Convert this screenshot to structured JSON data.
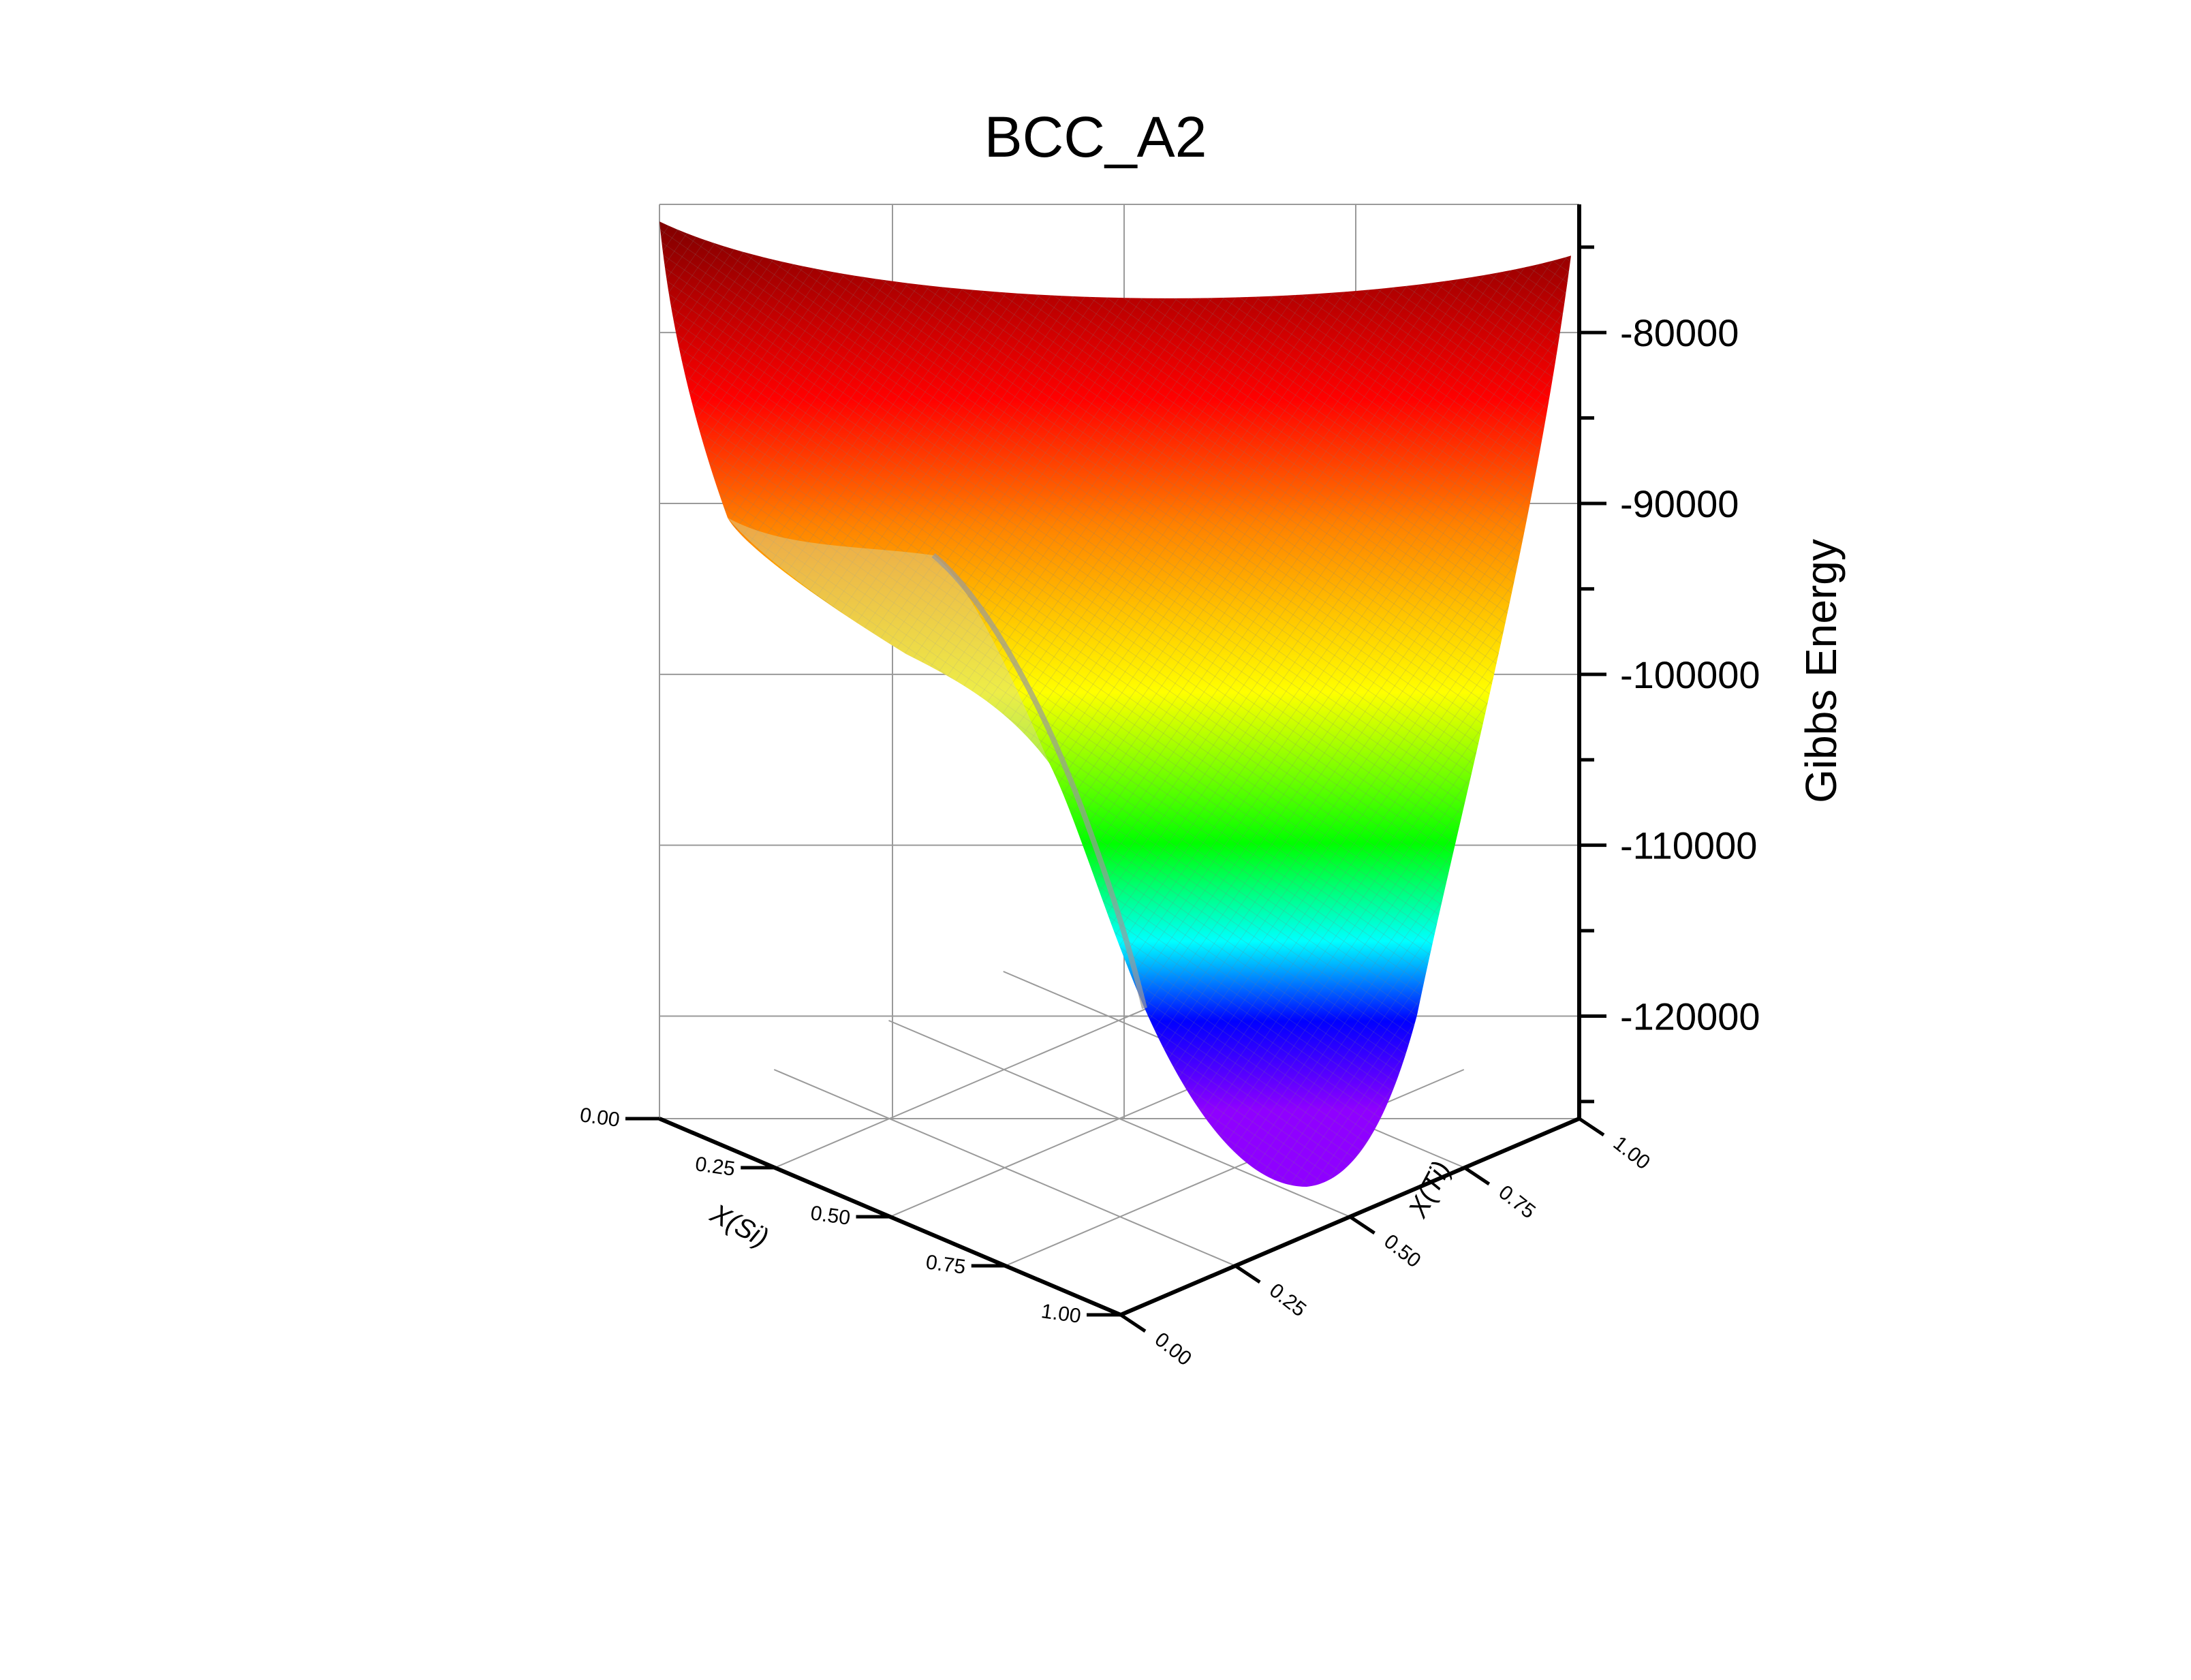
{
  "chart_data": {
    "type": "surface3d",
    "title": "BCC_A2",
    "zlabel": "Gibbs Energy",
    "xlabel": "X(Si)",
    "ylabel": "X(Ti)",
    "z_ticks": [
      "-80000",
      "-90000",
      "-100000",
      "-110000",
      "-120000"
    ],
    "z_tick_values": [
      -80000,
      -90000,
      -100000,
      -110000,
      -120000
    ],
    "zlim": [
      -126000,
      -72500
    ],
    "x_ticks": [
      "0.00",
      "0.25",
      "0.50",
      "0.75",
      "1.00"
    ],
    "y_ticks": [
      "0.00",
      "0.25",
      "0.50",
      "0.75",
      "1.00"
    ],
    "xlim": [
      0,
      1
    ],
    "ylim": [
      0,
      1
    ],
    "colormap": [
      "#8f00ff",
      "#0000ff",
      "#00ffff",
      "#00ff00",
      "#ffff00",
      "#ff8000",
      "#ff0000",
      "#7f0000"
    ],
    "mesh_color": "#808080",
    "surface_outline": {
      "description_free": true,
      "left_edge_top_z": -73500,
      "right_edge_top_z": -75500,
      "back_edge_mid_z": -81500,
      "minimum_z": -125500
    },
    "grid": true
  }
}
